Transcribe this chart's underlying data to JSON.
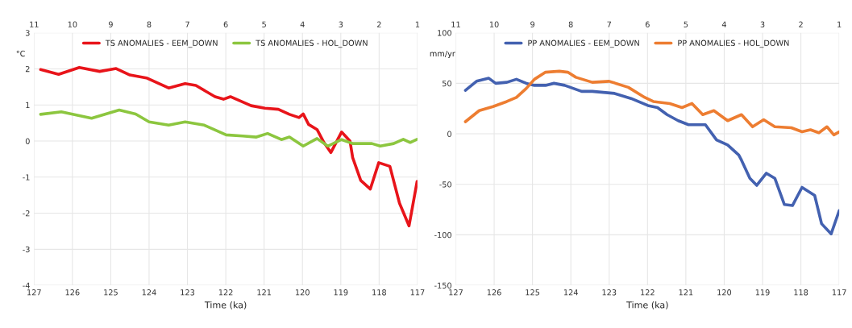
{
  "chart_data": [
    {
      "type": "line",
      "xlabel": "Time (ka)",
      "ylabel": "°C",
      "xlim": [
        127,
        117
      ],
      "xticks": [
        127,
        126,
        125,
        124,
        123,
        122,
        121,
        120,
        119,
        118,
        117
      ],
      "x2lim": [
        11,
        1
      ],
      "x2ticks": [
        11,
        10,
        9,
        8,
        7,
        6,
        5,
        4,
        3,
        2,
        1
      ],
      "ylim": [
        -4,
        3
      ],
      "yticks": [
        -4,
        -3,
        -2,
        -1,
        0,
        1,
        2,
        3
      ],
      "grid": true,
      "legend": "top",
      "series": [
        {
          "name": "TS ANOMALIES - EEM_DOWN",
          "color": "#e8141a",
          "x": [
            126.83,
            126.36,
            125.82,
            125.29,
            124.86,
            124.5,
            124.07,
            123.49,
            123.06,
            122.78,
            122.28,
            122.06,
            121.88,
            121.34,
            120.98,
            120.63,
            120.34,
            120.09,
            119.98,
            119.84,
            119.62,
            119.44,
            119.26,
            118.98,
            118.76,
            118.69,
            118.48,
            118.23,
            118.01,
            117.72,
            117.47,
            117.22,
            117.01
          ],
          "values": [
            1.98,
            1.85,
            2.04,
            1.93,
            2.01,
            1.83,
            1.75,
            1.47,
            1.59,
            1.54,
            1.23,
            1.16,
            1.23,
            0.98,
            0.91,
            0.88,
            0.74,
            0.65,
            0.75,
            0.46,
            0.32,
            -0.04,
            -0.32,
            0.25,
            0.0,
            -0.46,
            -1.09,
            -1.33,
            -0.6,
            -0.7,
            -1.72,
            -2.35,
            -1.12
          ]
        },
        {
          "name": "TS ANOMALIES - HOL_DOWN",
          "color": "#8cc63f",
          "x": [
            126.83,
            126.29,
            125.5,
            124.78,
            124.35,
            124.0,
            123.49,
            123.06,
            122.56,
            121.99,
            121.56,
            121.2,
            120.91,
            120.55,
            120.34,
            119.98,
            119.62,
            119.34,
            118.98,
            118.69,
            118.19,
            117.97,
            117.62,
            117.37,
            117.19,
            117.01
          ],
          "values": [
            0.74,
            0.81,
            0.63,
            0.86,
            0.75,
            0.53,
            0.44,
            0.53,
            0.44,
            0.17,
            0.14,
            0.11,
            0.21,
            0.04,
            0.11,
            -0.14,
            0.07,
            -0.14,
            0.04,
            -0.07,
            -0.07,
            -0.14,
            -0.07,
            0.05,
            -0.04,
            0.05
          ]
        }
      ]
    },
    {
      "type": "line",
      "xlabel": "Time (ka)",
      "ylabel": "mm/yr",
      "xlim": [
        127,
        117
      ],
      "xticks": [
        127,
        126,
        125,
        124,
        123,
        122,
        121,
        120,
        119,
        118,
        117
      ],
      "x2lim": [
        11,
        1
      ],
      "x2ticks": [
        11,
        10,
        9,
        8,
        7,
        6,
        5,
        4,
        3,
        2,
        1
      ],
      "ylim": [
        -150,
        100
      ],
      "yticks": [
        -150,
        -100,
        -50,
        0,
        50,
        100
      ],
      "grid": true,
      "legend": "top",
      "series": [
        {
          "name": "PP ANOMALIES - EEM_DOWN",
          "color": "#4361b0",
          "x": [
            126.75,
            126.46,
            126.14,
            125.96,
            125.67,
            125.42,
            125.16,
            124.95,
            124.66,
            124.44,
            124.16,
            123.72,
            123.44,
            122.86,
            122.43,
            121.99,
            121.74,
            121.49,
            121.2,
            120.93,
            120.49,
            120.2,
            119.91,
            119.62,
            119.55,
            119.33,
            119.15,
            118.9,
            118.68,
            118.43,
            118.22,
            117.97,
            117.64,
            117.46,
            117.21,
            117.0
          ],
          "values": [
            43,
            52,
            55,
            50,
            51,
            54,
            50,
            48,
            48,
            50,
            48,
            42,
            42,
            40,
            35,
            28,
            26,
            19,
            13,
            9,
            9,
            -6,
            -11,
            -21,
            -26,
            -44,
            -51,
            -39,
            -44,
            -70,
            -71,
            -53,
            -61,
            -89,
            -99,
            -76
          ]
        },
        {
          "name": "PP ANOMALIES - HOL_DOWN",
          "color": "#ed7d31",
          "x": [
            126.75,
            126.39,
            126.03,
            125.67,
            125.42,
            125.16,
            124.95,
            124.66,
            124.3,
            124.08,
            123.87,
            123.44,
            123.0,
            122.5,
            122.07,
            121.85,
            121.42,
            121.1,
            120.84,
            120.56,
            120.27,
            119.91,
            119.55,
            119.26,
            118.97,
            118.68,
            118.25,
            117.97,
            117.75,
            117.53,
            117.32,
            117.14,
            117.0
          ],
          "values": [
            12,
            23,
            27,
            32,
            36,
            45,
            54,
            61,
            62,
            61,
            56,
            51,
            52,
            46,
            36,
            32,
            30,
            26,
            30,
            19,
            23,
            13,
            19,
            7,
            14,
            7,
            6,
            2,
            4,
            1,
            7,
            -1,
            2
          ]
        }
      ]
    }
  ]
}
